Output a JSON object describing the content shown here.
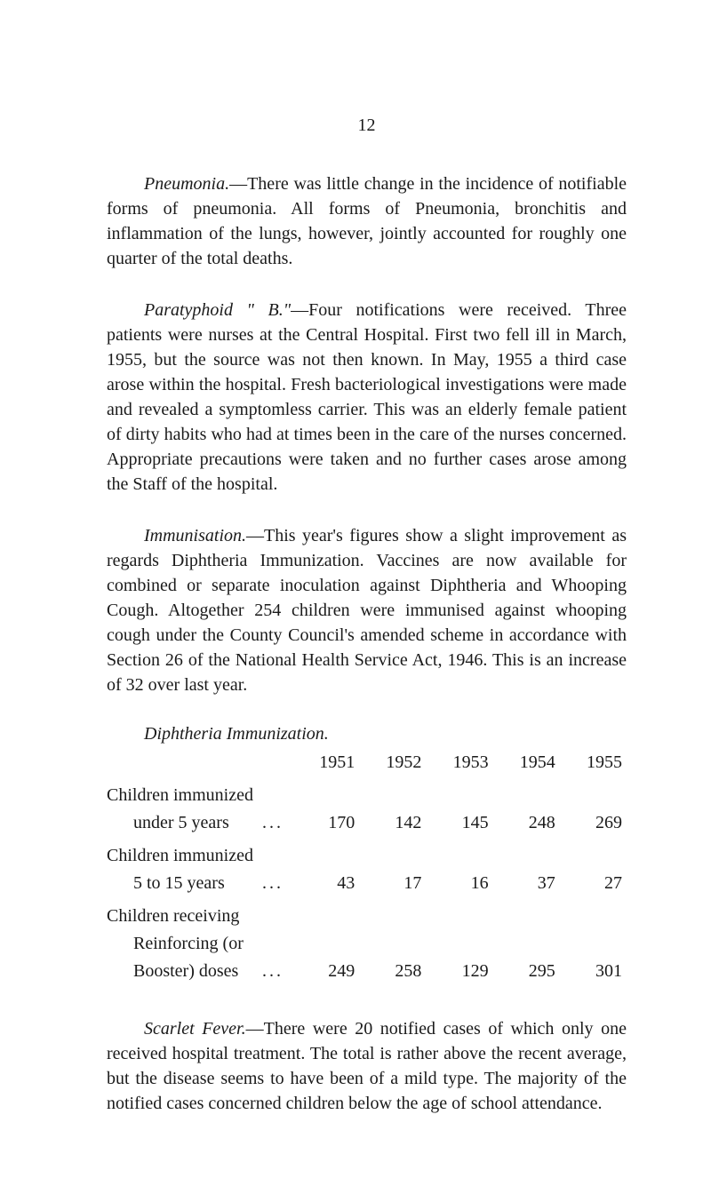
{
  "pageNumber": "12",
  "paragraphs": {
    "p1_lead_italic": "Pneumonia.",
    "p1_rest": "—There was little change in the incidence of notifiable forms of pneumonia. All forms of Pneumonia, bronchitis and inflammation of the lungs, however, jointly accounted for roughly one quarter of the total deaths.",
    "p2_lead_italic": "Paratyphoid \" B.\"",
    "p2_rest": "—Four notifications were received. Three patients were nurses at the Central Hospital. First two fell ill in March, 1955, but the source was not then known. In May, 1955 a third case arose within the hospital. Fresh bacteriological investigations were made and revealed a symptomless carrier. This was an elderly female patient of dirty habits who had at times been in the care of the nurses concerned. Appropriate precautions were taken and no further cases arose among the Staff of the hospital.",
    "p3_lead_italic": "Immunisation.",
    "p3_rest": "—This year's figures show a slight im­provement as regards Diphtheria Immunization. Vaccines are now available for combined or separate inoculation against Diphtheria and Whooping Cough. Altogether 254 children were immunised against whooping cough under the County Council's amended scheme in accordance with Section 26 of the National Health Service Act, 1946. This is an increase of 32 over last year.",
    "p4_lead_italic": "Scarlet Fever.",
    "p4_rest": "—There were 20 notified cases of which only one received hospital treatment. The total is rather above the recent average, but the disease seems to have been of a mild type. The majority of the notified cases concerned children below the age of school attendance."
  },
  "table": {
    "title": "Diphtheria Immunization.",
    "years": [
      "1951",
      "1952",
      "1953",
      "1954",
      "1955"
    ],
    "rows": [
      {
        "label1": "Children immunized",
        "label2": "under 5 years",
        "dots": "...",
        "values": [
          "170",
          "142",
          "145",
          "248",
          "269"
        ]
      },
      {
        "label1": "Children immunized",
        "label2": "5 to 15 years",
        "dots": "...",
        "values": [
          "43",
          "17",
          "16",
          "37",
          "27"
        ]
      },
      {
        "label1": "Children receiving",
        "label2": "Reinforcing (or",
        "label3": "Booster) doses",
        "dots": "...",
        "values": [
          "249",
          "258",
          "129",
          "295",
          "301"
        ]
      }
    ]
  }
}
